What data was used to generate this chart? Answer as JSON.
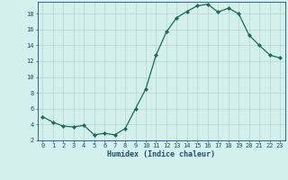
{
  "x": [
    0,
    1,
    2,
    3,
    4,
    5,
    6,
    7,
    8,
    9,
    10,
    11,
    12,
    13,
    14,
    15,
    16,
    17,
    18,
    19,
    20,
    21,
    22,
    23
  ],
  "y": [
    5.0,
    4.3,
    3.8,
    3.7,
    3.9,
    2.7,
    2.9,
    2.7,
    3.5,
    6.0,
    8.5,
    12.8,
    15.7,
    17.5,
    18.3,
    19.0,
    19.2,
    18.2,
    18.7,
    18.0,
    15.3,
    14.0,
    12.8,
    12.4
  ],
  "line_color": "#1a6b5a",
  "marker": "D",
  "marker_size": 2.0,
  "bg_color": "#d4f0ec",
  "grid_color": "#b8d4d0",
  "xlabel": "Humidex (Indice chaleur)",
  "ylim": [
    2,
    19.5
  ],
  "xlim": [
    -0.5,
    23.5
  ],
  "yticks": [
    2,
    4,
    6,
    8,
    10,
    12,
    14,
    16,
    18
  ],
  "xticks": [
    0,
    1,
    2,
    3,
    4,
    5,
    6,
    7,
    8,
    9,
    10,
    11,
    12,
    13,
    14,
    15,
    16,
    17,
    18,
    19,
    20,
    21,
    22,
    23
  ],
  "font_color": "#1a5070",
  "tick_fontsize": 5.0,
  "xlabel_fontsize": 6.0,
  "linewidth": 0.9
}
